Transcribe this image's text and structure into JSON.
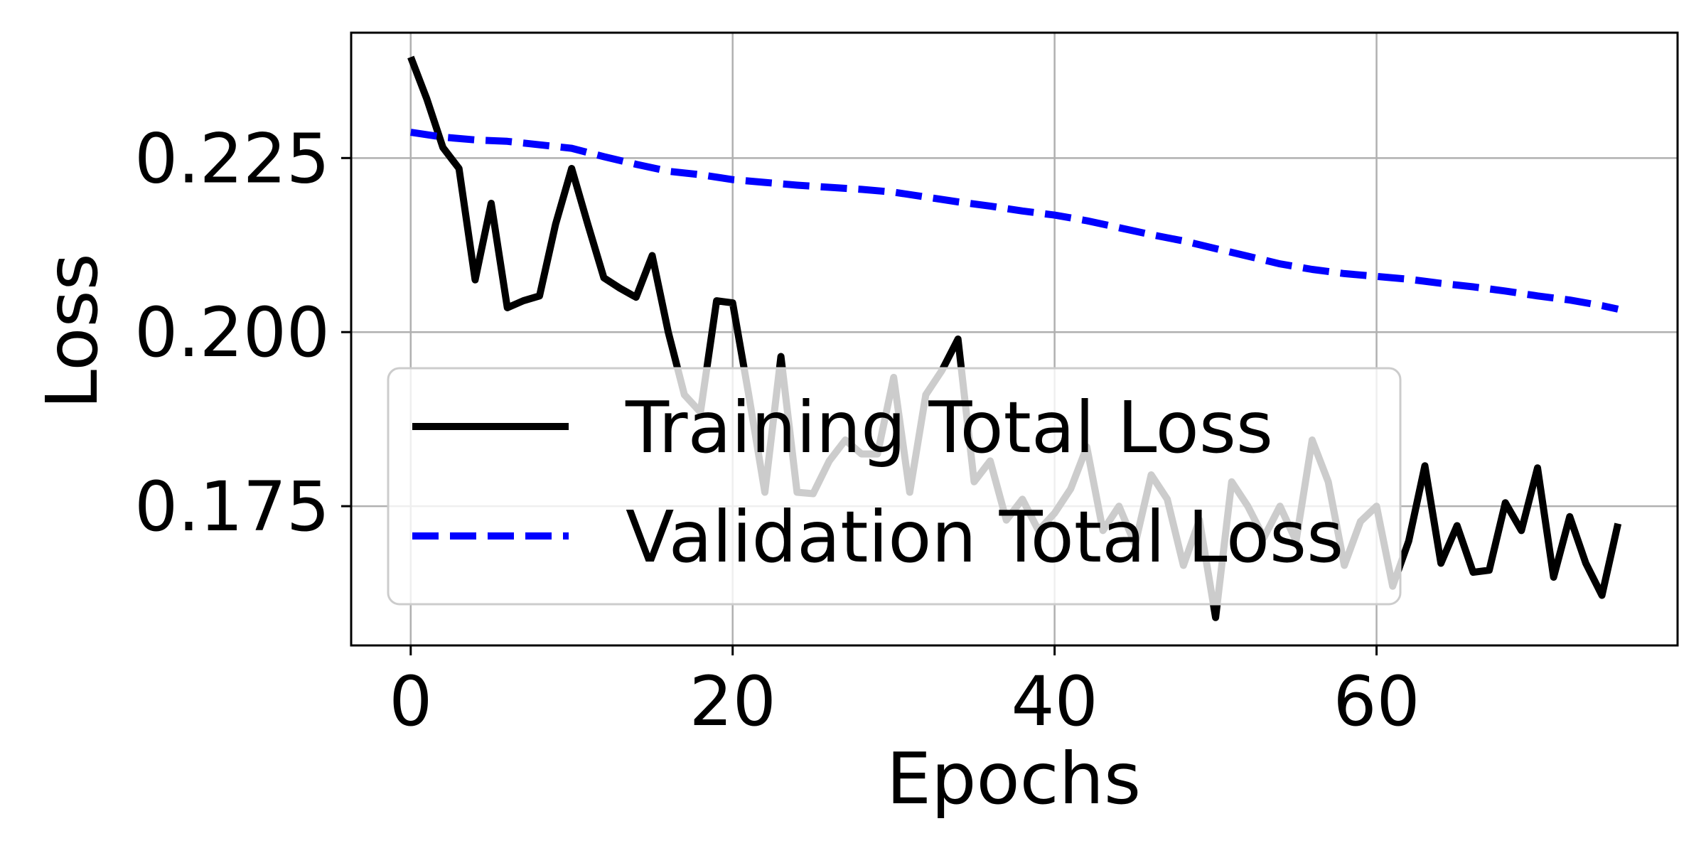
{
  "chart_data": {
    "type": "line",
    "title": "",
    "xlabel": "Epochs",
    "ylabel": "Loss",
    "xlim": [
      -3.7,
      78.7
    ],
    "ylim": [
      0.155,
      0.243
    ],
    "xticks": [
      0,
      20,
      40,
      60
    ],
    "xtick_labels": [
      "0",
      "20",
      "40",
      "60"
    ],
    "yticks": [
      0.175,
      0.2,
      0.225
    ],
    "ytick_labels": [
      "0.175",
      "0.200",
      "0.225"
    ],
    "grid": true,
    "legend_position": "lower-left",
    "series": [
      {
        "name": "Training Total Loss",
        "color": "#000000",
        "style": "solid",
        "x": [
          0,
          1,
          2,
          3,
          4,
          5,
          6,
          7,
          8,
          9,
          10,
          11,
          12,
          13,
          14,
          15,
          16,
          17,
          18,
          19,
          20,
          21,
          22,
          23,
          24,
          25,
          26,
          27,
          28,
          29,
          30,
          31,
          32,
          33,
          34,
          35,
          36,
          37,
          38,
          39,
          40,
          41,
          42,
          43,
          44,
          45,
          46,
          47,
          48,
          49,
          50,
          51,
          52,
          53,
          54,
          55,
          56,
          57,
          58,
          59,
          60,
          61,
          62,
          63,
          64,
          65,
          66,
          67,
          68,
          69,
          70,
          71,
          72,
          73,
          74,
          75
        ],
        "y": [
          0.2395,
          0.2335,
          0.2265,
          0.2235,
          0.2075,
          0.2185,
          0.2035,
          0.2045,
          0.2052,
          0.2155,
          0.2235,
          0.2155,
          0.2078,
          0.2063,
          0.205,
          0.211,
          0.2,
          0.191,
          0.1885,
          0.2045,
          0.2042,
          0.191,
          0.177,
          0.1965,
          0.177,
          0.1768,
          0.1815,
          0.1845,
          0.1825,
          0.1825,
          0.1935,
          0.177,
          0.191,
          0.1945,
          0.199,
          0.1785,
          0.1815,
          0.173,
          0.176,
          0.1715,
          0.174,
          0.1775,
          0.1835,
          0.1715,
          0.175,
          0.1695,
          0.1795,
          0.176,
          0.1665,
          0.173,
          0.159,
          0.1785,
          0.175,
          0.1705,
          0.175,
          0.17,
          0.1845,
          0.1785,
          0.1665,
          0.1728,
          0.175,
          0.1635,
          0.17,
          0.1808,
          0.1668,
          0.1722,
          0.1655,
          0.1658,
          0.1755,
          0.1715,
          0.1805,
          0.1648,
          0.1735,
          0.1668,
          0.1622,
          0.1725
        ]
      },
      {
        "name": "Validation Total Loss",
        "color": "#0000ff",
        "style": "dashed",
        "x": [
          0,
          2,
          4,
          6,
          8,
          10,
          12,
          14,
          16,
          18,
          20,
          22,
          24,
          26,
          28,
          30,
          32,
          34,
          36,
          38,
          40,
          42,
          44,
          46,
          48,
          50,
          52,
          54,
          56,
          58,
          60,
          62,
          64,
          66,
          68,
          70,
          72,
          74,
          75
        ],
        "y": [
          0.2287,
          0.228,
          0.2276,
          0.2274,
          0.2269,
          0.2264,
          0.2252,
          0.2241,
          0.2231,
          0.2226,
          0.2219,
          0.2215,
          0.2211,
          0.2208,
          0.2205,
          0.2201,
          0.2194,
          0.2187,
          0.2181,
          0.2174,
          0.2168,
          0.216,
          0.215,
          0.214,
          0.2131,
          0.212,
          0.2109,
          0.2098,
          0.209,
          0.2084,
          0.208,
          0.2076,
          0.207,
          0.2065,
          0.2059,
          0.2052,
          0.2046,
          0.2038,
          0.2033
        ]
      }
    ]
  }
}
